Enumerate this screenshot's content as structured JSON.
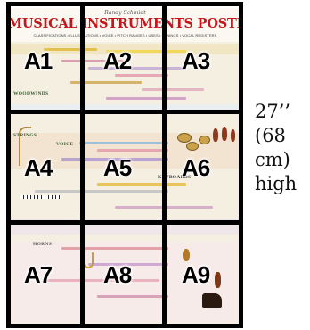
{
  "poster": {
    "signature": "Randy Schmidt",
    "title": "MUSICAL INSTRUMENTS POSTER",
    "subtitle": "CLASSIFICATIONS • ILLUSTRATIONS • VOICE • PITCH RANGES • USES • TUNINGS • VOCAL REGISTERS",
    "section_woodwinds": "WOODWINDS",
    "section_strings": "STRINGS",
    "section_voice": "VOICE",
    "section_keyboards": "KEYBOARDS",
    "section_horns": "HORNS"
  },
  "grid": {
    "cells": [
      {
        "label": "A1"
      },
      {
        "label": "A2"
      },
      {
        "label": "A3"
      },
      {
        "label": "A4"
      },
      {
        "label": "A5"
      },
      {
        "label": "A6"
      },
      {
        "label": "A7"
      },
      {
        "label": "A8"
      },
      {
        "label": "A9"
      }
    ]
  },
  "size_note": {
    "line1": "27’’",
    "line2": "(68",
    "line3": "cm)",
    "line4": "high"
  }
}
